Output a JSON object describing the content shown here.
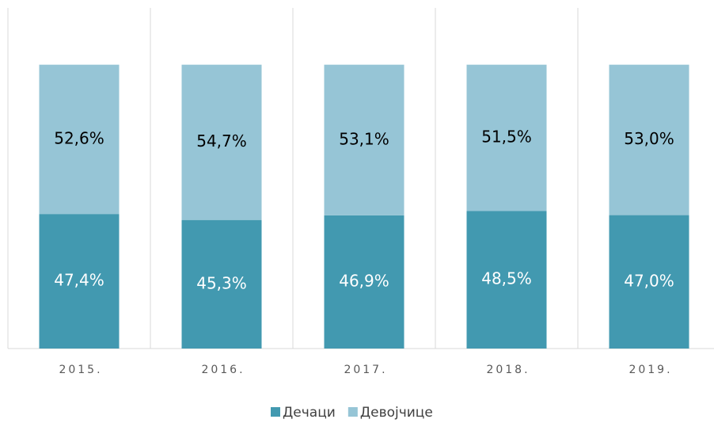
{
  "chart_data": {
    "type": "stacked_bar",
    "categories": [
      "2015.",
      "2016.",
      "2017.",
      "2018.",
      "2019."
    ],
    "series": [
      {
        "name": "Дечаци",
        "color": "#4299b0",
        "values": [
          47.4,
          45.3,
          46.9,
          48.5,
          47.0
        ],
        "value_labels": [
          "47,4%",
          "45,3%",
          "46,9%",
          "48,5%",
          "47,0%"
        ],
        "label_color": "#ffffff"
      },
      {
        "name": "Девојчице",
        "color": "#96c5d6",
        "values": [
          52.6,
          54.7,
          53.1,
          51.5,
          53.0
        ],
        "value_labels": [
          "52,6%",
          "54,7%",
          "53,1%",
          "51,5%",
          "53,0%"
        ],
        "label_color": "#000000"
      }
    ],
    "ylim": [
      0,
      120
    ],
    "legend": "bottom"
  }
}
